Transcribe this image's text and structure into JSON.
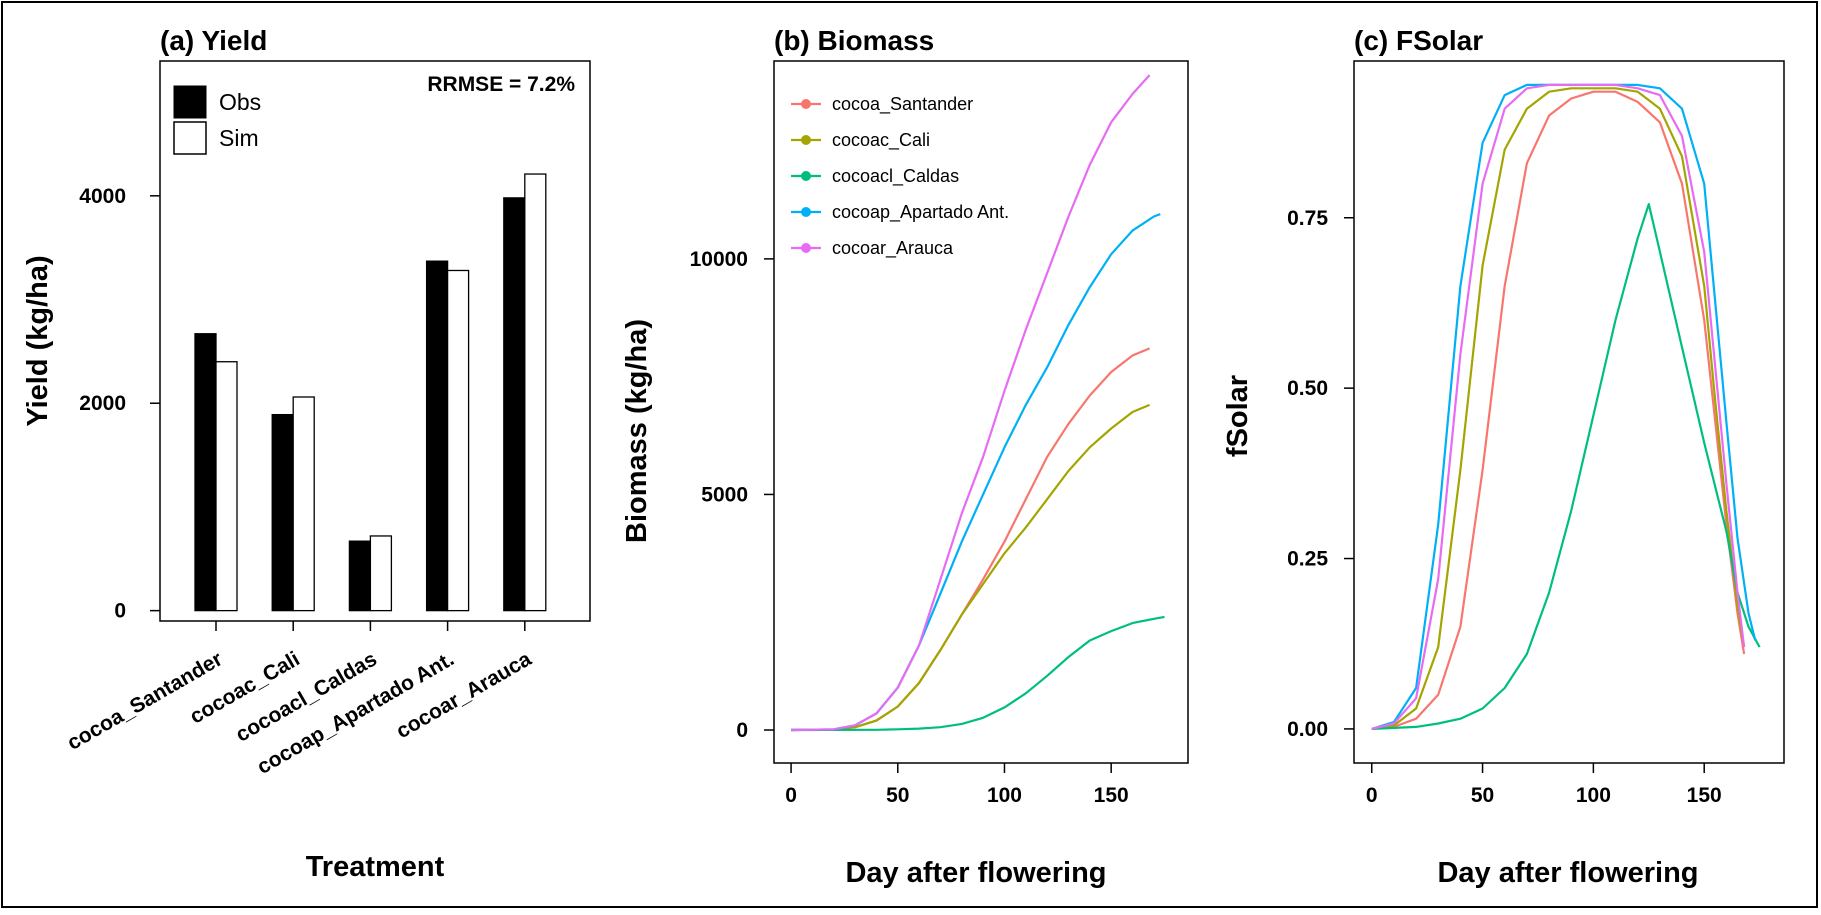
{
  "chart_data": [
    {
      "id": "yield",
      "type": "bar",
      "title": "(a) Yield",
      "xlabel": "Treatment",
      "ylabel": "Yield (kg/ha)",
      "annotation": "RRMSE = 7.2%",
      "categories": [
        "cocoa_Santander",
        "cocoac_Cali",
        "cocoacl_Caldas",
        "cocoap_Apartado Ant.",
        "cocoar_Arauca"
      ],
      "series": [
        {
          "name": "Obs",
          "color": "#000000",
          "values": [
            2670,
            1890,
            670,
            3370,
            3980
          ]
        },
        {
          "name": "Sim",
          "color": "#ffffff",
          "values": [
            2400,
            2060,
            720,
            3280,
            4210
          ]
        }
      ],
      "ylim": [
        -100,
        5300
      ],
      "yticks": [
        0,
        2000,
        4000
      ],
      "legend_position": "top-left"
    },
    {
      "id": "biomass",
      "type": "line",
      "title": "(b) Biomass",
      "xlabel": "Day after flowering",
      "ylabel": "Biomass (kg/ha)",
      "xlim": [
        -8,
        186
      ],
      "ylim": [
        -700,
        14200
      ],
      "xticks": [
        0,
        50,
        100,
        150
      ],
      "yticks": [
        0,
        5000,
        10000
      ],
      "legend_position": "top-left",
      "series": [
        {
          "name": "cocoa_Santander",
          "color": "#f8766d",
          "x": [
            0,
            20,
            30,
            40,
            50,
            60,
            70,
            80,
            90,
            100,
            110,
            120,
            130,
            140,
            150,
            160,
            168
          ],
          "y": [
            0,
            10,
            60,
            200,
            500,
            1000,
            1700,
            2450,
            3200,
            4000,
            4900,
            5800,
            6500,
            7100,
            7600,
            7950,
            8100
          ]
        },
        {
          "name": "cocoac_Cali",
          "color": "#a3a500",
          "x": [
            0,
            20,
            30,
            40,
            50,
            60,
            70,
            80,
            90,
            100,
            110,
            120,
            130,
            140,
            150,
            160,
            168
          ],
          "y": [
            0,
            10,
            60,
            200,
            500,
            1000,
            1700,
            2450,
            3100,
            3750,
            4300,
            4900,
            5500,
            6000,
            6400,
            6750,
            6900
          ]
        },
        {
          "name": "cocoacl_Caldas",
          "color": "#00bf7d",
          "x": [
            0,
            40,
            50,
            60,
            70,
            80,
            90,
            100,
            110,
            120,
            130,
            140,
            150,
            160,
            170,
            175
          ],
          "y": [
            0,
            5,
            15,
            30,
            60,
            130,
            260,
            480,
            780,
            1150,
            1550,
            1900,
            2100,
            2270,
            2360,
            2400
          ]
        },
        {
          "name": "cocoap_Apartado Ant.",
          "color": "#00b0f6",
          "x": [
            0,
            20,
            30,
            40,
            50,
            60,
            70,
            80,
            90,
            100,
            110,
            120,
            130,
            140,
            150,
            160,
            170,
            173
          ],
          "y": [
            0,
            15,
            100,
            350,
            900,
            1800,
            2900,
            4000,
            5000,
            6000,
            6900,
            7700,
            8600,
            9400,
            10100,
            10600,
            10900,
            10950
          ]
        },
        {
          "name": "cocoar_Arauca",
          "color": "#e76bf3",
          "x": [
            0,
            20,
            30,
            40,
            50,
            60,
            70,
            80,
            90,
            100,
            110,
            120,
            130,
            140,
            150,
            160,
            168
          ],
          "y": [
            0,
            15,
            100,
            350,
            900,
            1800,
            3200,
            4600,
            5800,
            7200,
            8500,
            9700,
            10900,
            12000,
            12900,
            13500,
            13900
          ]
        }
      ]
    },
    {
      "id": "fsolar",
      "type": "line",
      "title": "(c) FSolar",
      "xlabel": "Day after flowering",
      "ylabel": "fSolar",
      "xlim": [
        -8,
        186
      ],
      "ylim": [
        -0.05,
        0.98
      ],
      "xticks": [
        0,
        50,
        100,
        150
      ],
      "yticks": [
        0.0,
        0.25,
        0.5,
        0.75
      ],
      "ytick_labels": [
        "0.00",
        "0.25",
        "0.50",
        "0.75"
      ],
      "series": [
        {
          "name": "cocoa_Santander",
          "color": "#f8766d",
          "x": [
            0,
            10,
            20,
            30,
            40,
            50,
            60,
            70,
            80,
            90,
            100,
            110,
            120,
            130,
            140,
            150,
            155,
            160,
            165,
            168
          ],
          "y": [
            0,
            0.003,
            0.015,
            0.05,
            0.15,
            0.38,
            0.65,
            0.83,
            0.9,
            0.925,
            0.935,
            0.935,
            0.92,
            0.89,
            0.8,
            0.6,
            0.45,
            0.3,
            0.17,
            0.11
          ]
        },
        {
          "name": "cocoac_Cali",
          "color": "#a3a500",
          "x": [
            0,
            10,
            20,
            30,
            40,
            50,
            60,
            70,
            80,
            90,
            100,
            110,
            120,
            130,
            140,
            150,
            155,
            160,
            165,
            168
          ],
          "y": [
            0,
            0.005,
            0.03,
            0.12,
            0.38,
            0.68,
            0.85,
            0.91,
            0.935,
            0.94,
            0.94,
            0.94,
            0.935,
            0.91,
            0.84,
            0.65,
            0.48,
            0.32,
            0.18,
            0.12
          ]
        },
        {
          "name": "cocoacl_Caldas",
          "color": "#00bf7d",
          "x": [
            0,
            20,
            30,
            40,
            50,
            60,
            70,
            80,
            90,
            100,
            110,
            120,
            125,
            130,
            140,
            150,
            160,
            165,
            170,
            175
          ],
          "y": [
            0,
            0.003,
            0.008,
            0.015,
            0.03,
            0.06,
            0.11,
            0.2,
            0.32,
            0.46,
            0.6,
            0.72,
            0.77,
            0.7,
            0.56,
            0.42,
            0.29,
            0.2,
            0.15,
            0.12
          ]
        },
        {
          "name": "cocoap_Apartado Ant.",
          "color": "#00b0f6",
          "x": [
            0,
            10,
            20,
            30,
            40,
            50,
            60,
            70,
            80,
            90,
            100,
            110,
            120,
            130,
            140,
            150,
            160,
            165,
            170,
            173
          ],
          "y": [
            0,
            0.01,
            0.06,
            0.3,
            0.65,
            0.86,
            0.93,
            0.945,
            0.945,
            0.945,
            0.945,
            0.945,
            0.945,
            0.94,
            0.91,
            0.8,
            0.45,
            0.28,
            0.17,
            0.13
          ]
        },
        {
          "name": "cocoar_Arauca",
          "color": "#e76bf3",
          "x": [
            0,
            10,
            20,
            30,
            40,
            50,
            60,
            70,
            80,
            90,
            100,
            110,
            120,
            130,
            140,
            150,
            155,
            160,
            165,
            168
          ],
          "y": [
            0,
            0.008,
            0.045,
            0.22,
            0.55,
            0.8,
            0.91,
            0.94,
            0.945,
            0.945,
            0.945,
            0.945,
            0.94,
            0.93,
            0.87,
            0.7,
            0.53,
            0.36,
            0.2,
            0.12
          ]
        }
      ]
    }
  ]
}
